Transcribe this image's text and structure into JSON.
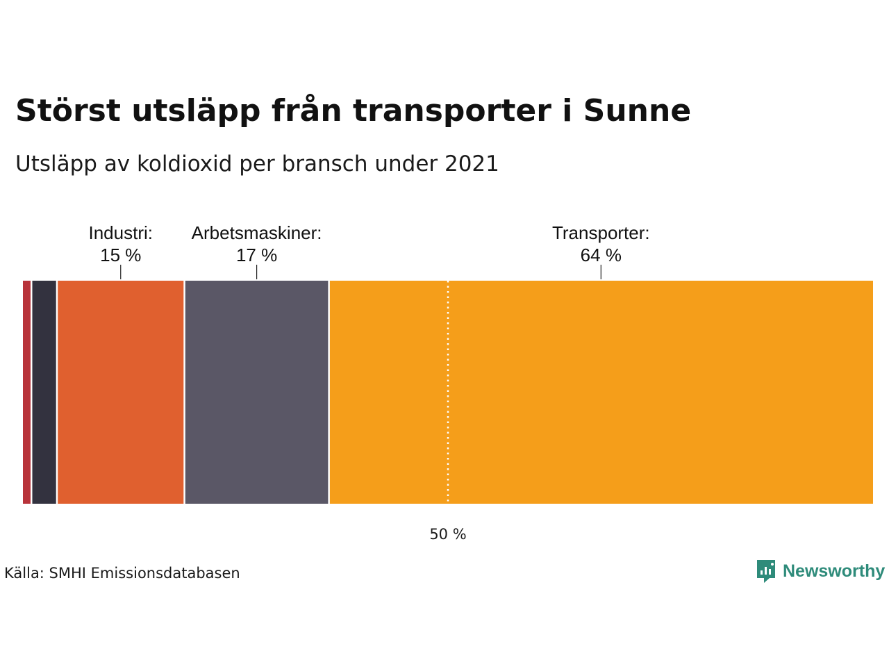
{
  "title": "Störst utsläpp från transporter i Sunne",
  "subtitle": "Utsläpp av koldioxid per bransch under 2021",
  "source": "Källa: SMHI Emissionsdatabasen",
  "brand": {
    "name": "Newsworthy",
    "color": "#2e8b7a",
    "icon": "newsworthy-logo-icon"
  },
  "chart_data": {
    "type": "bar",
    "orientation": "horizontal-stacked",
    "unit": "%",
    "xlim": [
      0,
      100
    ],
    "segments": [
      {
        "name": "",
        "value": 1,
        "color": "#b8333a",
        "label": "",
        "value_label": ""
      },
      {
        "name": "",
        "value": 3,
        "color": "#33323f",
        "label": "",
        "value_label": ""
      },
      {
        "name": "Industri",
        "value": 15,
        "color": "#e0602f",
        "label": "Industri:",
        "value_label": "15 %"
      },
      {
        "name": "Arbetsmaskiner",
        "value": 17,
        "color": "#5a5766",
        "label": "Arbetsmaskiner:",
        "value_label": "17 %"
      },
      {
        "name": "Transporter",
        "value": 64,
        "color": "#f59e1a",
        "label": "Transporter:",
        "value_label": "64 %"
      }
    ],
    "reference_line": {
      "value": 50,
      "label": "50 %",
      "style": "dotted",
      "color": "#ffffff"
    }
  }
}
